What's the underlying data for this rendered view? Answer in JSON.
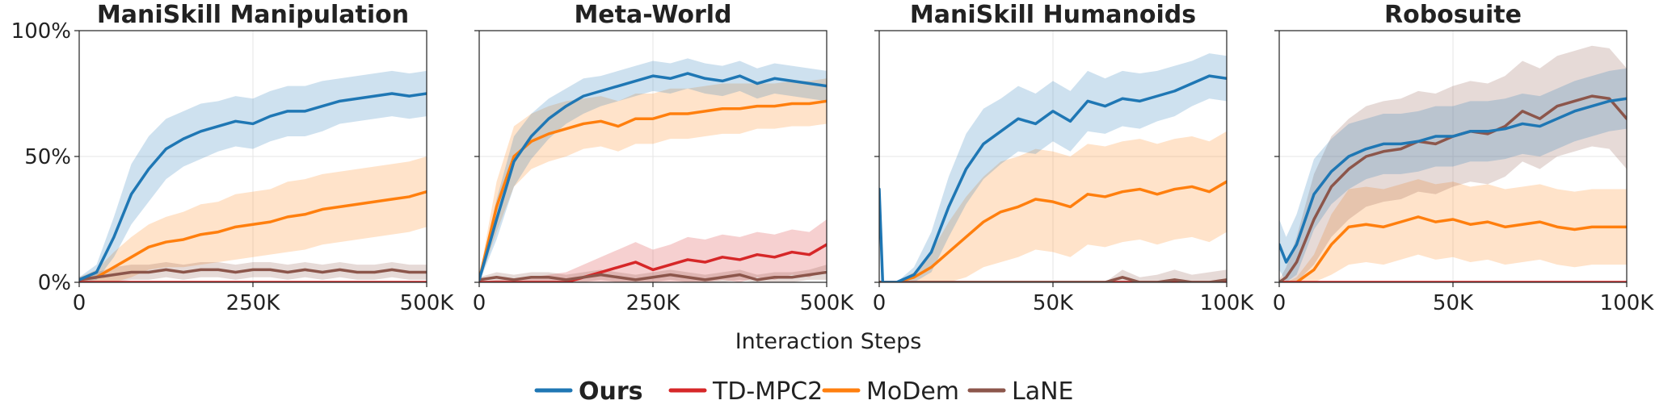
{
  "figure": {
    "xlabel": "Interaction Steps",
    "legend": {
      "placement": "bottom-center",
      "entries": [
        {
          "key": "ours",
          "label": "Ours",
          "bold": true
        },
        {
          "key": "tdmpc2",
          "label": "TD-MPC2",
          "bold": false
        },
        {
          "key": "modem",
          "label": "MoDem",
          "bold": false
        },
        {
          "key": "lane",
          "label": "LaNE",
          "bold": false
        }
      ]
    }
  },
  "colors": {
    "ours": "#1f77b4",
    "tdmpc2": "#d62728",
    "modem": "#ff7f0e",
    "lane": "#8c564b"
  },
  "chart_data": [
    {
      "type": "line",
      "title": "ManiSkill Manipulation",
      "xlim": [
        0,
        500000
      ],
      "ylim": [
        0,
        100
      ],
      "xticks": [
        {
          "v": 0,
          "label": "0"
        },
        {
          "v": 250000,
          "label": "250K"
        },
        {
          "v": 500000,
          "label": "500K"
        }
      ],
      "yticks": [
        {
          "v": 0,
          "label": "0%"
        },
        {
          "v": 50,
          "label": "50%"
        },
        {
          "v": 100,
          "label": "100%"
        }
      ],
      "grid": true,
      "x": [
        0,
        25000,
        50000,
        75000,
        100000,
        125000,
        150000,
        175000,
        200000,
        225000,
        250000,
        275000,
        300000,
        325000,
        350000,
        375000,
        400000,
        425000,
        450000,
        475000,
        500000
      ],
      "series": [
        {
          "name": "Ours",
          "key": "ours",
          "values": [
            1,
            4,
            18,
            35,
            45,
            53,
            57,
            60,
            62,
            64,
            63,
            66,
            68,
            68,
            70,
            72,
            73,
            74,
            75,
            74,
            75
          ],
          "spread": [
            1,
            3,
            8,
            12,
            13,
            12,
            11,
            11,
            10,
            10,
            10,
            10,
            10,
            10,
            10,
            9,
            9,
            9,
            9,
            9,
            9
          ]
        },
        {
          "name": "TD-MPC2",
          "key": "tdmpc2",
          "values": [
            0,
            0,
            0,
            0,
            0,
            0,
            0,
            0,
            0,
            0,
            0,
            0,
            0,
            0,
            0,
            0,
            0,
            0,
            0,
            0,
            0
          ],
          "spread": [
            0,
            0,
            0,
            0,
            0,
            0,
            0,
            0,
            0,
            0,
            0,
            0,
            0,
            0,
            0,
            0,
            0,
            0,
            0,
            0,
            0
          ]
        },
        {
          "name": "MoDem",
          "key": "modem",
          "values": [
            1,
            2,
            6,
            10,
            14,
            16,
            17,
            19,
            20,
            22,
            23,
            24,
            26,
            27,
            29,
            30,
            31,
            32,
            33,
            34,
            36
          ],
          "spread": [
            1,
            3,
            6,
            8,
            9,
            10,
            11,
            12,
            12,
            13,
            13,
            13,
            14,
            14,
            14,
            14,
            14,
            14,
            14,
            14,
            14
          ]
        },
        {
          "name": "LaNE",
          "key": "lane",
          "values": [
            1,
            2,
            3,
            4,
            4,
            5,
            4,
            5,
            5,
            4,
            5,
            5,
            4,
            5,
            4,
            5,
            4,
            4,
            5,
            4,
            4
          ],
          "spread": [
            1,
            2,
            3,
            3,
            3,
            3,
            3,
            3,
            3,
            3,
            3,
            3,
            3,
            3,
            3,
            3,
            3,
            3,
            3,
            3,
            3
          ]
        }
      ]
    },
    {
      "type": "line",
      "title": "Meta-World",
      "xlim": [
        0,
        500000
      ],
      "ylim": [
        0,
        100
      ],
      "xticks": [
        {
          "v": 0,
          "label": "0"
        },
        {
          "v": 250000,
          "label": "250K"
        },
        {
          "v": 500000,
          "label": "500K"
        }
      ],
      "yticks": [
        {
          "v": 0,
          "label": ""
        },
        {
          "v": 50,
          "label": ""
        },
        {
          "v": 100,
          "label": ""
        }
      ],
      "grid": true,
      "x": [
        0,
        25000,
        50000,
        75000,
        100000,
        125000,
        150000,
        175000,
        200000,
        225000,
        250000,
        275000,
        300000,
        325000,
        350000,
        375000,
        400000,
        425000,
        450000,
        475000,
        500000
      ],
      "series": [
        {
          "name": "Ours",
          "key": "ours",
          "values": [
            1,
            25,
            48,
            58,
            65,
            70,
            74,
            76,
            78,
            80,
            82,
            81,
            83,
            81,
            80,
            82,
            79,
            81,
            80,
            79,
            78
          ],
          "spread": [
            1,
            8,
            10,
            9,
            8,
            7,
            7,
            6,
            6,
            6,
            6,
            6,
            6,
            6,
            6,
            6,
            6,
            6,
            6,
            6,
            6
          ]
        },
        {
          "name": "TD-MPC2",
          "key": "tdmpc2",
          "values": [
            0,
            0,
            0,
            0,
            0,
            0,
            2,
            4,
            6,
            8,
            5,
            7,
            9,
            8,
            10,
            9,
            11,
            10,
            12,
            11,
            15
          ],
          "spread": [
            0,
            1,
            1,
            2,
            3,
            4,
            5,
            6,
            7,
            8,
            8,
            8,
            9,
            9,
            9,
            9,
            9,
            9,
            9,
            9,
            10
          ]
        },
        {
          "name": "MoDem",
          "key": "modem",
          "values": [
            1,
            30,
            50,
            56,
            59,
            61,
            63,
            64,
            62,
            65,
            65,
            67,
            67,
            68,
            69,
            69,
            70,
            70,
            71,
            71,
            72
          ],
          "spread": [
            1,
            10,
            12,
            11,
            11,
            11,
            10,
            10,
            10,
            10,
            10,
            10,
            10,
            10,
            10,
            10,
            9,
            9,
            9,
            9,
            9
          ]
        },
        {
          "name": "LaNE",
          "key": "lane",
          "values": [
            1,
            2,
            1,
            2,
            2,
            1,
            2,
            3,
            2,
            1,
            2,
            3,
            2,
            1,
            2,
            3,
            1,
            2,
            2,
            3,
            4
          ],
          "spread": [
            1,
            2,
            2,
            2,
            2,
            2,
            2,
            2,
            2,
            2,
            2,
            2,
            2,
            2,
            2,
            2,
            2,
            2,
            2,
            2,
            3
          ]
        }
      ]
    },
    {
      "type": "line",
      "title": "ManiSkill Humanoids",
      "xlim": [
        0,
        100000
      ],
      "ylim": [
        0,
        100
      ],
      "xticks": [
        {
          "v": 0,
          "label": "0"
        },
        {
          "v": 50000,
          "label": "50K"
        },
        {
          "v": 100000,
          "label": "100K"
        }
      ],
      "yticks": [
        {
          "v": 0,
          "label": ""
        },
        {
          "v": 50,
          "label": ""
        },
        {
          "v": 100,
          "label": ""
        }
      ],
      "grid": true,
      "x": [
        0,
        1000,
        5000,
        10000,
        15000,
        20000,
        25000,
        30000,
        35000,
        40000,
        45000,
        50000,
        55000,
        60000,
        65000,
        70000,
        75000,
        80000,
        85000,
        90000,
        95000,
        100000
      ],
      "series": [
        {
          "name": "Ours",
          "key": "ours",
          "values": [
            37,
            0,
            0,
            3,
            12,
            30,
            45,
            55,
            60,
            65,
            63,
            68,
            64,
            72,
            70,
            73,
            72,
            74,
            76,
            79,
            82,
            81
          ],
          "spread": [
            0,
            0,
            0,
            3,
            8,
            12,
            14,
            14,
            13,
            13,
            12,
            12,
            12,
            12,
            11,
            11,
            11,
            10,
            10,
            9,
            9,
            9
          ]
        },
        {
          "name": "TD-MPC2",
          "key": "tdmpc2",
          "values": [
            0,
            0,
            0,
            0,
            0,
            0,
            0,
            0,
            0,
            0,
            0,
            0,
            0,
            0,
            0,
            0,
            0,
            0,
            0,
            0,
            0,
            0
          ],
          "spread": [
            0,
            0,
            0,
            0,
            0,
            0,
            0,
            0,
            0,
            0,
            0,
            0,
            0,
            0,
            0,
            0,
            0,
            0,
            0,
            0,
            0,
            0
          ]
        },
        {
          "name": "MoDem",
          "key": "modem",
          "values": [
            0,
            0,
            0,
            2,
            6,
            12,
            18,
            24,
            28,
            30,
            33,
            32,
            30,
            35,
            34,
            36,
            37,
            35,
            37,
            38,
            36,
            40
          ],
          "spread": [
            0,
            0,
            0,
            2,
            6,
            12,
            16,
            18,
            20,
            20,
            20,
            20,
            20,
            20,
            20,
            20,
            20,
            20,
            20,
            20,
            20,
            20
          ]
        },
        {
          "name": "LaNE",
          "key": "lane",
          "values": [
            0,
            0,
            0,
            0,
            0,
            0,
            0,
            0,
            0,
            0,
            0,
            0,
            0,
            0,
            0,
            2,
            0,
            0,
            1,
            0,
            0,
            1
          ],
          "spread": [
            0,
            0,
            0,
            0,
            0,
            0,
            0,
            0,
            0,
            0,
            0,
            0,
            0,
            0,
            0,
            3,
            2,
            3,
            4,
            3,
            4,
            4
          ]
        }
      ]
    },
    {
      "type": "line",
      "title": "Robosuite",
      "xlim": [
        0,
        100000
      ],
      "ylim": [
        0,
        100
      ],
      "xticks": [
        {
          "v": 0,
          "label": "0"
        },
        {
          "v": 50000,
          "label": "50K"
        },
        {
          "v": 100000,
          "label": "100K"
        }
      ],
      "yticks": [
        {
          "v": 0,
          "label": ""
        },
        {
          "v": 50,
          "label": ""
        },
        {
          "v": 100,
          "label": ""
        }
      ],
      "grid": true,
      "x": [
        0,
        2000,
        5000,
        10000,
        15000,
        20000,
        25000,
        30000,
        35000,
        40000,
        45000,
        50000,
        55000,
        60000,
        65000,
        70000,
        75000,
        80000,
        85000,
        90000,
        95000,
        100000
      ],
      "series": [
        {
          "name": "Ours",
          "key": "ours",
          "values": [
            15,
            8,
            15,
            35,
            44,
            50,
            53,
            55,
            55,
            56,
            58,
            58,
            60,
            60,
            61,
            63,
            62,
            65,
            68,
            70,
            72,
            73
          ],
          "spread": [
            10,
            10,
            12,
            14,
            13,
            13,
            12,
            12,
            12,
            12,
            12,
            12,
            12,
            12,
            12,
            12,
            12,
            12,
            12,
            12,
            12,
            12
          ]
        },
        {
          "name": "TD-MPC2",
          "key": "tdmpc2",
          "values": [
            0,
            0,
            0,
            0,
            0,
            0,
            0,
            0,
            0,
            0,
            0,
            0,
            0,
            0,
            0,
            0,
            0,
            0,
            0,
            0,
            0,
            0
          ],
          "spread": [
            0,
            0,
            0,
            0,
            0,
            0,
            0,
            0,
            0,
            0,
            0,
            0,
            0,
            0,
            0,
            0,
            0,
            0,
            0,
            0,
            0,
            0
          ]
        },
        {
          "name": "MoDem",
          "key": "modem",
          "values": [
            0,
            0,
            0,
            5,
            15,
            22,
            23,
            22,
            24,
            26,
            24,
            25,
            23,
            24,
            22,
            23,
            24,
            22,
            21,
            22,
            22,
            22
          ],
          "spread": [
            0,
            0,
            2,
            6,
            12,
            15,
            15,
            15,
            15,
            15,
            15,
            15,
            15,
            15,
            15,
            15,
            15,
            15,
            15,
            15,
            15,
            15
          ]
        },
        {
          "name": "LaNE",
          "key": "lane",
          "values": [
            0,
            2,
            8,
            25,
            38,
            45,
            50,
            52,
            53,
            56,
            55,
            58,
            60,
            59,
            62,
            68,
            65,
            70,
            72,
            74,
            73,
            65
          ],
          "spread": [
            1,
            4,
            10,
            18,
            20,
            20,
            20,
            20,
            20,
            20,
            20,
            20,
            20,
            20,
            20,
            20,
            20,
            20,
            20,
            20,
            20,
            20
          ]
        }
      ]
    }
  ]
}
